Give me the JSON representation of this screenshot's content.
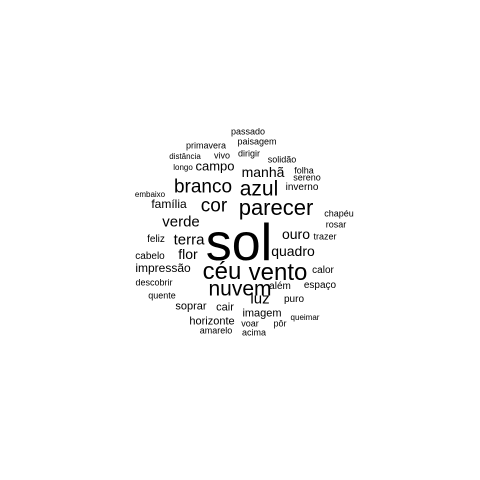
{
  "words": [
    {
      "text": "sol",
      "size": 52
    },
    {
      "text": "céu",
      "size": 24
    },
    {
      "text": "vento",
      "size": 24
    },
    {
      "text": "nuvem",
      "size": 21
    },
    {
      "text": "parecer",
      "size": 22
    },
    {
      "text": "azul",
      "size": 21
    },
    {
      "text": "branco",
      "size": 19
    },
    {
      "text": "cor",
      "size": 19
    },
    {
      "text": "verde",
      "size": 15
    },
    {
      "text": "terra",
      "size": 15
    },
    {
      "text": "flor",
      "size": 14
    },
    {
      "text": "luz",
      "size": 15
    },
    {
      "text": "manhã",
      "size": 14
    },
    {
      "text": "quadro",
      "size": 14
    },
    {
      "text": "ouro",
      "size": 14
    },
    {
      "text": "campo",
      "size": 13
    },
    {
      "text": "família",
      "size": 12
    },
    {
      "text": "impressão",
      "size": 12
    },
    {
      "text": "imagem",
      "size": 11
    },
    {
      "text": "soprar",
      "size": 11
    },
    {
      "text": "cair",
      "size": 11
    },
    {
      "text": "horizonte",
      "size": 11
    },
    {
      "text": "inverno",
      "size": 10
    },
    {
      "text": "cabelo",
      "size": 10
    },
    {
      "text": "feliz",
      "size": 10
    },
    {
      "text": "além",
      "size": 10
    },
    {
      "text": "calor",
      "size": 10
    },
    {
      "text": "espaço",
      "size": 10
    },
    {
      "text": "puro",
      "size": 10
    },
    {
      "text": "descobrir",
      "size": 9
    },
    {
      "text": "quente",
      "size": 9
    },
    {
      "text": "voar",
      "size": 9
    },
    {
      "text": "pôr",
      "size": 9
    },
    {
      "text": "queimar",
      "size": 8
    },
    {
      "text": "amarelo",
      "size": 9
    },
    {
      "text": "acima",
      "size": 9
    },
    {
      "text": "trazer",
      "size": 9
    },
    {
      "text": "rosar",
      "size": 9
    },
    {
      "text": "chapéu",
      "size": 9
    },
    {
      "text": "embaixo",
      "size": 8
    },
    {
      "text": "longo",
      "size": 8
    },
    {
      "text": "distância",
      "size": 8
    },
    {
      "text": "vivo",
      "size": 9
    },
    {
      "text": "dirigir",
      "size": 9
    },
    {
      "text": "primavera",
      "size": 9
    },
    {
      "text": "paisagem",
      "size": 9
    },
    {
      "text": "passado",
      "size": 9
    },
    {
      "text": "solidão",
      "size": 9
    },
    {
      "text": "folha",
      "size": 9
    },
    {
      "text": "sereno",
      "size": 9
    }
  ]
}
